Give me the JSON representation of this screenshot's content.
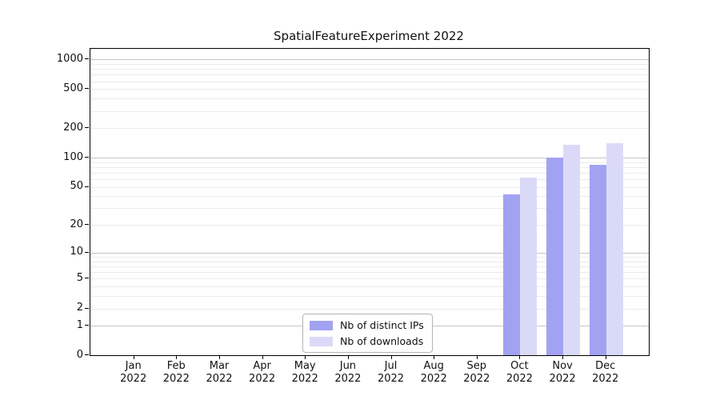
{
  "title": "SpatialFeatureExperiment 2022",
  "chart_data": {
    "type": "bar",
    "title": "SpatialFeatureExperiment 2022",
    "categories": [
      "Jan 2022",
      "Feb 2022",
      "Mar 2022",
      "Apr 2022",
      "May 2022",
      "Jun 2022",
      "Jul 2022",
      "Aug 2022",
      "Sep 2022",
      "Oct 2022",
      "Nov 2022",
      "Dec 2022"
    ],
    "series": [
      {
        "name": "Nb of distinct IPs",
        "color": "#a2a2f2",
        "values": [
          null,
          null,
          null,
          null,
          null,
          null,
          null,
          null,
          null,
          42,
          100,
          85
        ]
      },
      {
        "name": "Nb of downloads",
        "color": "#dadaf8",
        "values": [
          null,
          null,
          null,
          null,
          null,
          null,
          null,
          null,
          null,
          63,
          137,
          140
        ]
      }
    ],
    "xlabel": "",
    "ylabel": "",
    "yscale": "log1p",
    "yticks": [
      0,
      1,
      2,
      5,
      10,
      20,
      50,
      100,
      200,
      500,
      1000
    ],
    "ylim": [
      0,
      1280
    ],
    "grid": true,
    "legend_position": "lower-center-inside"
  },
  "colors": {
    "background": "#ffffff",
    "spine": "#000000",
    "decade_gridline": "#c6c6c6",
    "minor_gridline": "#ebebeb",
    "text": "#111111"
  }
}
